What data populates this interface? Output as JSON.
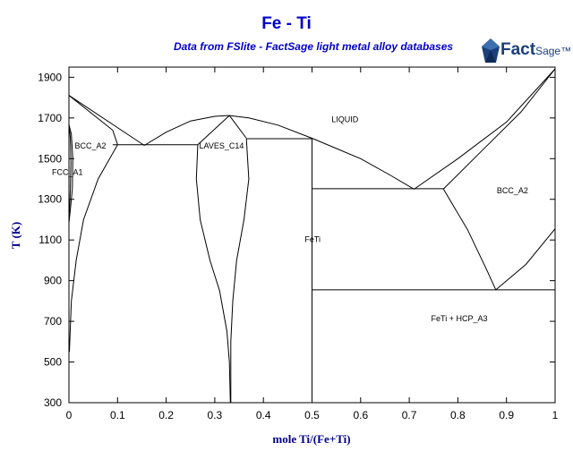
{
  "header": {
    "title": "Fe - Ti",
    "subtitle": "Data from FSlite - FactSage light metal alloy databases",
    "logo_text": "FactSage",
    "logo_main": "Fact",
    "logo_sub": "Sage™"
  },
  "chart_data": {
    "type": "line",
    "title": "Fe - Ti",
    "subtitle": "Data from FSlite - FactSage light metal alloy databases",
    "xlabel": "mole Ti/(Fe+Ti)",
    "ylabel": "T (K)",
    "xlim": [
      0,
      1
    ],
    "ylim": [
      300,
      1950
    ],
    "x_ticks": [
      0,
      0.1,
      0.2,
      0.3,
      0.4,
      0.5,
      0.6,
      0.7,
      0.8,
      0.9,
      1
    ],
    "x_tick_labels": [
      "0",
      "0.1",
      "0.2",
      "0.3",
      "0.4",
      "0.5",
      "0.6",
      "0.7",
      "0.8",
      "0.9",
      "1"
    ],
    "y_ticks": [
      300,
      500,
      700,
      900,
      1100,
      1300,
      1500,
      1700,
      1900
    ],
    "y_tick_labels": [
      "300",
      "500",
      "700",
      "900",
      "1100",
      "1300",
      "1500",
      "1700",
      "1900"
    ],
    "grid": false,
    "line_color": "#000000",
    "title_color": "#0000cc",
    "axis_label_color": "#00008b",
    "region_labels": [
      {
        "text": "LIQUID",
        "x": 0.54,
        "y": 1680
      },
      {
        "text": "BCC_A2",
        "x": 0.012,
        "y": 1550
      },
      {
        "text": "FCC_A1",
        "x": -0.035,
        "y": 1420
      },
      {
        "text": "LAVES_C14",
        "x": 0.268,
        "y": 1550
      },
      {
        "text": "FeTi",
        "x": 0.485,
        "y": 1090
      },
      {
        "text": "BCC_A2",
        "x": 0.88,
        "y": 1330
      },
      {
        "text": "FeTi + HCP_A3",
        "x": 0.745,
        "y": 700
      }
    ],
    "boundaries": [
      {
        "name": "liquidus-fe-side",
        "points": [
          [
            0,
            1811
          ],
          [
            0.155,
            1565
          ]
        ]
      },
      {
        "name": "solidus-fe-side",
        "points": [
          [
            0,
            1811
          ],
          [
            0.09,
            1640
          ],
          [
            0.1,
            1570
          ]
        ]
      },
      {
        "name": "eutectic-fe-laves",
        "points": [
          [
            0.09,
            1568
          ],
          [
            0.265,
            1568
          ]
        ]
      },
      {
        "name": "liquidus-laves",
        "points": [
          [
            0.155,
            1565
          ],
          [
            0.2,
            1630
          ],
          [
            0.25,
            1685
          ],
          [
            0.3,
            1708
          ],
          [
            0.33,
            1712
          ],
          [
            0.37,
            1700
          ],
          [
            0.43,
            1665
          ],
          [
            0.5,
            1600
          ]
        ]
      },
      {
        "name": "laves-left-top",
        "points": [
          [
            0.265,
            1568
          ],
          [
            0.33,
            1712
          ]
        ]
      },
      {
        "name": "laves-right-top",
        "points": [
          [
            0.33,
            1712
          ],
          [
            0.365,
            1600
          ]
        ]
      },
      {
        "name": "eutectic-laves-feti",
        "points": [
          [
            0.365,
            1598
          ],
          [
            0.5,
            1598
          ]
        ]
      },
      {
        "name": "laves-left-boundary",
        "points": [
          [
            0.265,
            1568
          ],
          [
            0.262,
            1400
          ],
          [
            0.27,
            1200
          ],
          [
            0.29,
            1000
          ],
          [
            0.31,
            850
          ],
          [
            0.325,
            650
          ],
          [
            0.33,
            500
          ],
          [
            0.332,
            300
          ]
        ]
      },
      {
        "name": "laves-right-boundary",
        "points": [
          [
            0.365,
            1598
          ],
          [
            0.37,
            1400
          ],
          [
            0.36,
            1200
          ],
          [
            0.345,
            1000
          ],
          [
            0.337,
            800
          ],
          [
            0.333,
            600
          ],
          [
            0.333,
            300
          ]
        ]
      },
      {
        "name": "feti-line",
        "points": [
          [
            0.5,
            1598
          ],
          [
            0.5,
            300
          ]
        ]
      },
      {
        "name": "liquidus-ti-side-1",
        "points": [
          [
            0.5,
            1600
          ],
          [
            0.6,
            1500
          ],
          [
            0.66,
            1420
          ],
          [
            0.71,
            1350
          ]
        ]
      },
      {
        "name": "liquidus-ti-side-2",
        "points": [
          [
            0.71,
            1350
          ],
          [
            0.8,
            1500
          ],
          [
            0.9,
            1680
          ],
          [
            1,
            1941
          ]
        ]
      },
      {
        "name": "solidus-ti-side",
        "points": [
          [
            0.77,
            1350
          ],
          [
            0.85,
            1540
          ],
          [
            0.93,
            1730
          ],
          [
            1,
            1941
          ]
        ]
      },
      {
        "name": "eutectic-feti-bcc",
        "points": [
          [
            0.5,
            1352
          ],
          [
            0.77,
            1352
          ]
        ]
      },
      {
        "name": "bcc-boundary-left",
        "points": [
          [
            0.77,
            1352
          ],
          [
            0.82,
            1150
          ],
          [
            0.86,
            950
          ],
          [
            0.878,
            855
          ]
        ]
      },
      {
        "name": "bcc-boundary-right",
        "points": [
          [
            0.878,
            855
          ],
          [
            0.94,
            980
          ],
          [
            1,
            1155
          ]
        ]
      },
      {
        "name": "eutectoid-line",
        "points": [
          [
            0.5,
            855
          ],
          [
            1,
            855
          ]
        ]
      },
      {
        "name": "fe-solubility",
        "points": [
          [
            0.1,
            1568
          ],
          [
            0.06,
            1400
          ],
          [
            0.03,
            1200
          ],
          [
            0.015,
            1000
          ],
          [
            0.005,
            800
          ],
          [
            0.001,
            550
          ]
        ]
      },
      {
        "name": "fcc-loop-right",
        "points": [
          [
            0,
            1667
          ],
          [
            0.005,
            1620
          ],
          [
            0.008,
            1500
          ],
          [
            0.007,
            1350
          ],
          [
            0.003,
            1250
          ],
          [
            0,
            1185
          ]
        ]
      },
      {
        "name": "fcc-loop-inner",
        "points": [
          [
            0,
            1667
          ],
          [
            0.003,
            1600
          ],
          [
            0.004,
            1480
          ],
          [
            0.003,
            1350
          ],
          [
            0.001,
            1240
          ],
          [
            0,
            1185
          ]
        ]
      }
    ]
  }
}
